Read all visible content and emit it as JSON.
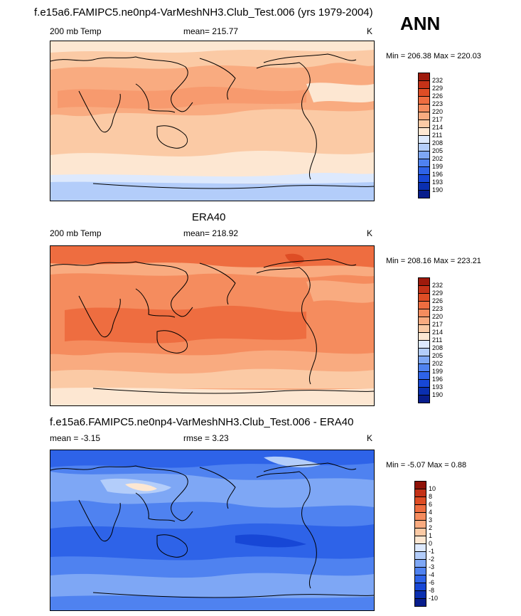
{
  "season": "ANN",
  "units": "K",
  "colors": {
    "land_outline": "#000000",
    "temp_scale": [
      "#081d8c",
      "#0a2fb0",
      "#1747d6",
      "#2e63e8",
      "#4f82f0",
      "#7ea7f5",
      "#b3cdfa",
      "#dde9fd",
      "#fde7d2",
      "#fbcaa5",
      "#f9ab80",
      "#f58c5e",
      "#ee6d40",
      "#de4d25",
      "#c43218",
      "#9e1a0c"
    ],
    "diff_scale": [
      "#081d8c",
      "#0a2fb0",
      "#1747d6",
      "#2e63e8",
      "#4f82f0",
      "#7ea7f5",
      "#b3cdfa",
      "#dde9fd",
      "#fde7d2",
      "#fbcaa5",
      "#f9ab80",
      "#f58c5e",
      "#ee6d40",
      "#de4d25",
      "#c43218",
      "#8f1208"
    ]
  },
  "panels": [
    {
      "id": "model",
      "title": "f.e15a6.FAMIPC5.ne0np4-VarMeshNH3.Club_Test.006 (yrs 1979-2004)",
      "left_label": "200 mb Temp",
      "center_label": "mean= 215.77",
      "right_label": "K",
      "minmax": "Min = 206.38 Max = 220.03",
      "colorbar_ticks": [
        "232",
        "229",
        "226",
        "223",
        "220",
        "217",
        "214",
        "211",
        "208",
        "205",
        "202",
        "199",
        "196",
        "193",
        "190"
      ],
      "chart_data": {
        "type": "heatmap",
        "variable": "200 mb Temp",
        "mean": 215.77,
        "min": 206.38,
        "max": 220.03,
        "units": "K",
        "levels": [
          190,
          193,
          196,
          199,
          202,
          205,
          208,
          211,
          214,
          217,
          220,
          223,
          226,
          229,
          232
        ]
      }
    },
    {
      "id": "obs",
      "title": "ERA40",
      "left_label": "200 mb Temp",
      "center_label": "mean= 218.92",
      "right_label": "K",
      "minmax": "Min = 208.16 Max = 223.21",
      "colorbar_ticks": [
        "232",
        "229",
        "226",
        "223",
        "220",
        "217",
        "214",
        "211",
        "208",
        "205",
        "202",
        "199",
        "196",
        "193",
        "190"
      ],
      "chart_data": {
        "type": "heatmap",
        "variable": "200 mb Temp",
        "mean": 218.92,
        "min": 208.16,
        "max": 223.21,
        "units": "K",
        "levels": [
          190,
          193,
          196,
          199,
          202,
          205,
          208,
          211,
          214,
          217,
          220,
          223,
          226,
          229,
          232
        ]
      }
    },
    {
      "id": "diff",
      "title": "f.e15a6.FAMIPC5.ne0np4-VarMeshNH3.Club_Test.006 - ERA40",
      "left_label": "mean =  -3.15",
      "center_label": "rmse =   3.23",
      "right_label": "K",
      "minmax": "Min =  -5.07 Max =   0.88",
      "colorbar_ticks": [
        "10",
        "8",
        "6",
        "4",
        "3",
        "2",
        "1",
        "0",
        "-1",
        "-2",
        "-3",
        "-4",
        "-6",
        "-8",
        "-10"
      ],
      "chart_data": {
        "type": "heatmap",
        "variable": "difference",
        "mean": -3.15,
        "rmse": 3.23,
        "min": -5.07,
        "max": 0.88,
        "units": "K",
        "levels": [
          -10,
          -8,
          -6,
          -4,
          -3,
          -2,
          -1,
          0,
          1,
          2,
          3,
          4,
          6,
          8,
          10
        ]
      }
    }
  ]
}
